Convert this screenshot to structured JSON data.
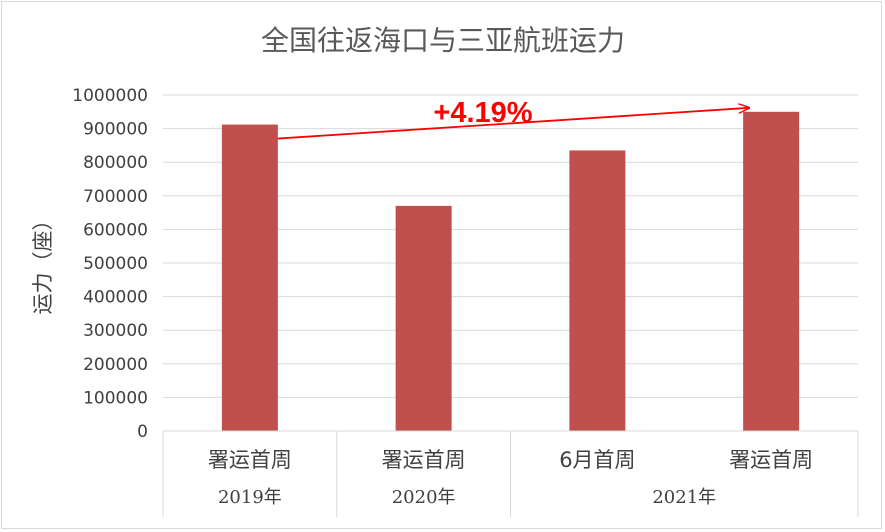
{
  "chart_data": {
    "type": "bar",
    "title": "全国往返海口与三亚航班运力",
    "ylabel": "运力（座）",
    "xlabel": "",
    "categories": [
      "署运首周",
      "署运首周",
      "6月首周",
      "署运首周"
    ],
    "groups": [
      {
        "label": "2019年",
        "span": 1
      },
      {
        "label": "2020年",
        "span": 1
      },
      {
        "label": "2021年",
        "span": 2
      }
    ],
    "values": [
      912000,
      670000,
      835000,
      950000
    ],
    "ylim": [
      0,
      1000000
    ],
    "yticks": [
      "0",
      "100000",
      "200000",
      "300000",
      "400000",
      "500000",
      "600000",
      "700000",
      "800000",
      "900000",
      "1000000"
    ],
    "grid": true,
    "legend": "none",
    "bar_color": "#c0504d",
    "annotation": {
      "text": "+4.19%",
      "from_index": 0,
      "to_index": 3,
      "color": "#ff0000"
    }
  }
}
